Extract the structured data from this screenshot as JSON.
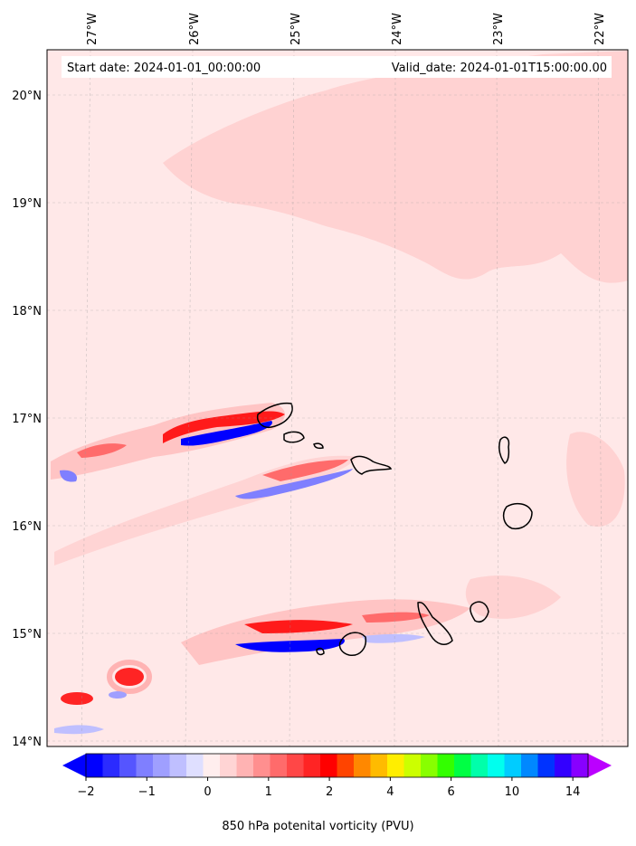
{
  "map": {
    "start_date": "Start date: 2024-01-01_00:00:00",
    "valid_date": "Valid_date: 2024-01-01T15:00:00.00",
    "lon_labels": [
      "27°W",
      "26°W",
      "25°W",
      "24°W",
      "23°W",
      "22°W"
    ],
    "lat_labels": [
      "20°N",
      "19°N",
      "18°N",
      "17°N",
      "16°N",
      "15°N",
      "14°N"
    ],
    "variable": "850 hPa potential vorticity",
    "units": "PVU",
    "extent": {
      "lon_min": -27.4,
      "lon_max": -21.7,
      "lat_min": 13.95,
      "lat_max": 20.4
    }
  },
  "colorbar": {
    "title": "850 hPa potenital vorticity (PVU)",
    "tick_labels": [
      "−2",
      "−1",
      "0",
      "1",
      "2",
      "4",
      "6",
      "10",
      "14"
    ],
    "colors": [
      "#0000ff",
      "#2b2bff",
      "#5555ff",
      "#7f7fff",
      "#9f9fff",
      "#bfbfff",
      "#dfdfff",
      "#ffeeee",
      "#ffd4d4",
      "#ffb3b3",
      "#ff8f8f",
      "#ff6b6b",
      "#ff4747",
      "#ff2424",
      "#ff0000",
      "#ff4400",
      "#ff8800",
      "#ffbb00",
      "#ffee00",
      "#ccff00",
      "#88ff00",
      "#33ff00",
      "#00ff44",
      "#00ffaa",
      "#00ffee",
      "#00ccff",
      "#0088ff",
      "#0033ff",
      "#3300ff",
      "#8800ff"
    ],
    "under_color": "#0000ff",
    "over_color": "#bb00ff"
  },
  "colors": {
    "background_field": "#ffe8e8",
    "light_band": "#ffd2d2",
    "positive": "#ff0000",
    "negative": "#0000ff"
  },
  "features": [
    {
      "name": "Santo Antão"
    },
    {
      "name": "São Vicente"
    },
    {
      "name": "Santa Luzia"
    },
    {
      "name": "São Nicolau"
    },
    {
      "name": "Sal"
    },
    {
      "name": "Boa Vista"
    },
    {
      "name": "Maio"
    },
    {
      "name": "Santiago"
    },
    {
      "name": "Fogo"
    },
    {
      "name": "Brava"
    }
  ]
}
